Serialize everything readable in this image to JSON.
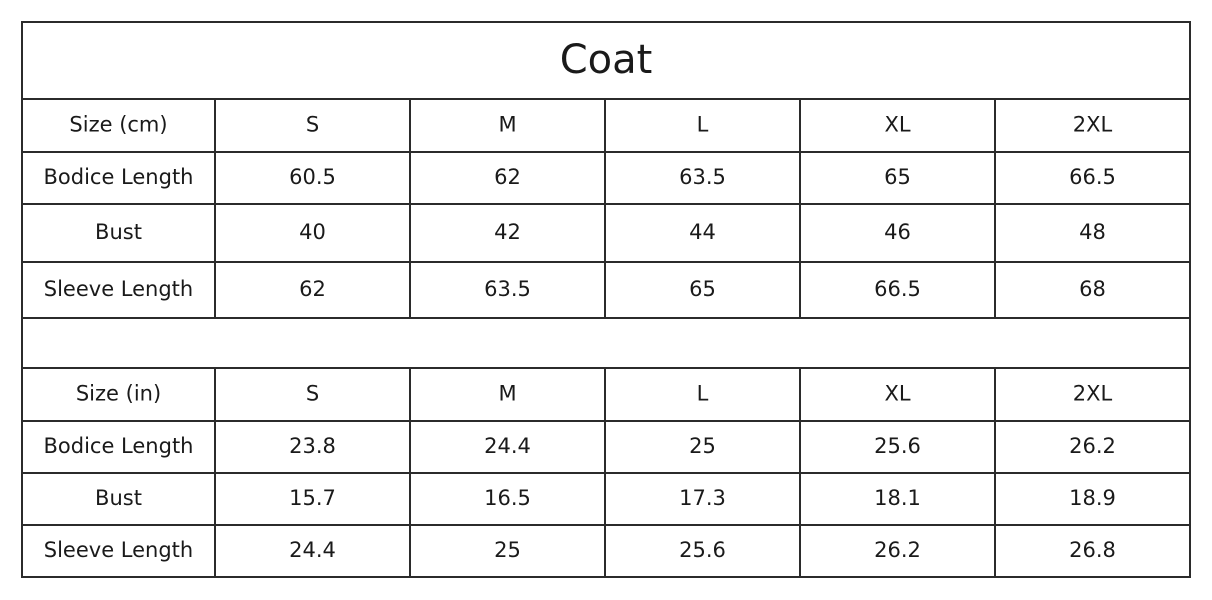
{
  "title": "Coat",
  "tables": [
    {
      "header": [
        "Size (cm)",
        "S",
        "M",
        "L",
        "XL",
        "2XL"
      ],
      "rows": [
        [
          "Bodice Length",
          "60.5",
          "62",
          "63.5",
          "65",
          "66.5"
        ],
        [
          "Bust",
          "40",
          "42",
          "44",
          "46",
          "48"
        ],
        [
          "Sleeve Length",
          "62",
          "63.5",
          "65",
          "66.5",
          "68"
        ]
      ]
    },
    {
      "header": [
        "Size (in)",
        "S",
        "M",
        "L",
        "XL",
        "2XL"
      ],
      "rows": [
        [
          "Bodice Length",
          "23.8",
          "24.4",
          "25",
          "25.6",
          "26.2"
        ],
        [
          "Bust",
          "15.7",
          "16.5",
          "17.3",
          "18.1",
          "18.9"
        ],
        [
          "Sleeve Length",
          "24.4",
          "25",
          "25.6",
          "26.2",
          "26.8"
        ]
      ]
    }
  ]
}
